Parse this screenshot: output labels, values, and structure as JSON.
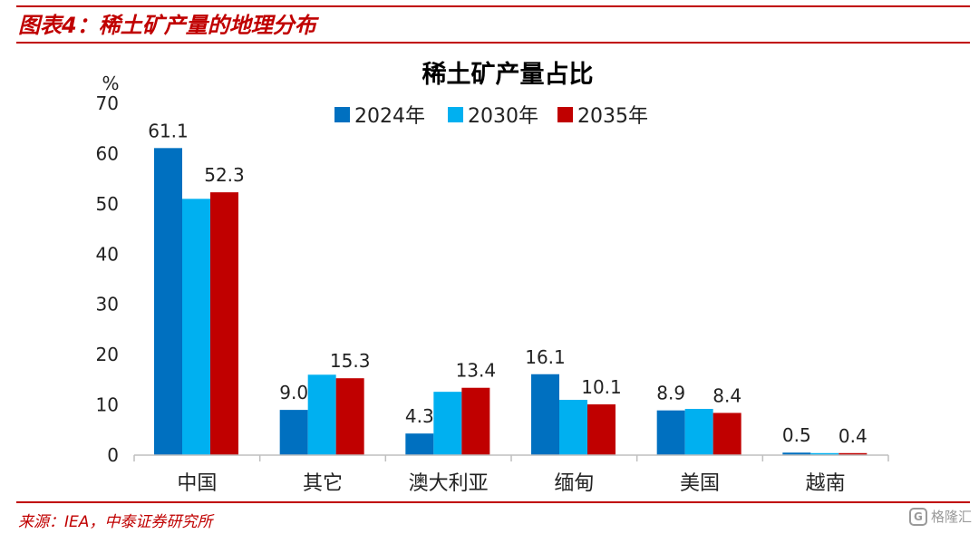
{
  "figure_label": "图表4：稀土矿产量的地理分布",
  "source": "来源：IEA，中泰证券研究所",
  "watermark": "格隆汇",
  "watermark_logo": "G",
  "chart_data": {
    "type": "bar",
    "title": "稀土矿产量占比",
    "ylabel": "%",
    "ylim": [
      0,
      70
    ],
    "yticks": [
      0,
      10,
      20,
      30,
      40,
      50,
      60,
      70
    ],
    "grid": false,
    "legend_position": "top",
    "categories": [
      "中国",
      "其它",
      "澳大利亚",
      "缅甸",
      "美国",
      "越南"
    ],
    "series": [
      {
        "name": "2024年",
        "color": "#0070c0",
        "values": [
          61.1,
          9.0,
          4.3,
          16.1,
          8.9,
          0.5
        ],
        "labels": [
          "61.1",
          "9.0",
          "4.3",
          "16.1",
          "8.9",
          "0.5"
        ]
      },
      {
        "name": "2030年",
        "color": "#00b0f0",
        "values": [
          51.0,
          16.0,
          12.6,
          11.0,
          9.2,
          0.4
        ],
        "labels": [
          "",
          "",
          "",
          "",
          "",
          ""
        ]
      },
      {
        "name": "2035年",
        "color": "#c00000",
        "values": [
          52.3,
          15.3,
          13.4,
          10.1,
          8.4,
          0.4
        ],
        "labels": [
          "52.3",
          "15.3",
          "13.4",
          "10.1",
          "8.4",
          "0.4"
        ]
      }
    ]
  }
}
